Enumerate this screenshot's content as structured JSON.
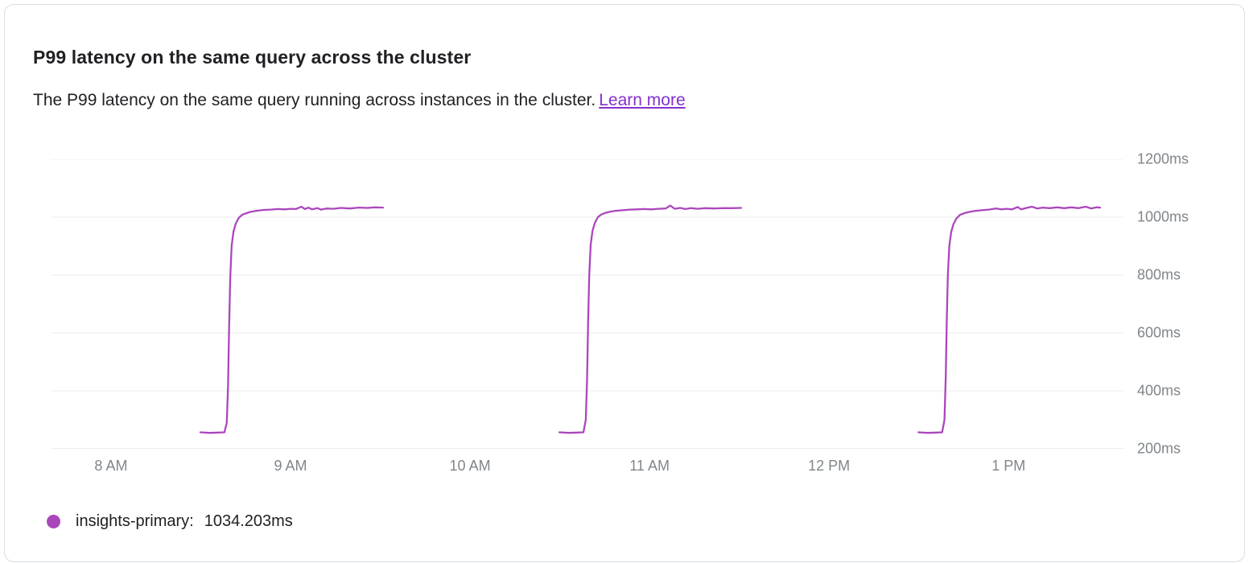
{
  "card": {
    "title": "P99 latency on the same query across the cluster",
    "subtitle": "The P99 latency on the same query running across instances in the cluster.",
    "learn_more_label": "Learn more",
    "link_color": "#8430ce"
  },
  "legend": {
    "series_label": "insights-primary:",
    "series_value": "1034.203ms",
    "dot_color": "#ab47bc"
  },
  "chart_data": {
    "type": "line",
    "series_name": "insights-primary",
    "current_value_ms": 1034.203,
    "line_color": "#ab47bc",
    "colors": {
      "grid": "#eceef0",
      "axis": "#dadce0",
      "tick_text": "#80868b"
    },
    "xlim": [
      7.664,
      13.64
    ],
    "ylim": [
      200,
      1200
    ],
    "x_ticks": [
      {
        "value": 8,
        "label": "8 AM"
      },
      {
        "value": 9,
        "label": "9 AM"
      },
      {
        "value": 10,
        "label": "10 AM"
      },
      {
        "value": 11,
        "label": "11 AM"
      },
      {
        "value": 12,
        "label": "12 PM"
      },
      {
        "value": 13,
        "label": "1 PM"
      }
    ],
    "y_ticks": [
      {
        "value": 1200,
        "label": "1200ms"
      },
      {
        "value": 1000,
        "label": "1000ms"
      },
      {
        "value": 800,
        "label": "800ms"
      },
      {
        "value": 600,
        "label": "600ms"
      },
      {
        "value": 400,
        "label": "400ms"
      },
      {
        "value": 200,
        "label": "200ms"
      }
    ],
    "segments": [
      {
        "points": [
          [
            8.498,
            257
          ],
          [
            8.55,
            255
          ],
          [
            8.6,
            256
          ],
          [
            8.632,
            257
          ],
          [
            8.645,
            290
          ],
          [
            8.652,
            420
          ],
          [
            8.658,
            620
          ],
          [
            8.664,
            790
          ],
          [
            8.672,
            900
          ],
          [
            8.682,
            950
          ],
          [
            8.695,
            978
          ],
          [
            8.712,
            998
          ],
          [
            8.73,
            1008
          ],
          [
            8.755,
            1014
          ],
          [
            8.78,
            1019
          ],
          [
            8.81,
            1022
          ],
          [
            8.85,
            1025
          ],
          [
            8.89,
            1026
          ],
          [
            8.93,
            1028
          ],
          [
            8.97,
            1027
          ],
          [
            9.0,
            1029
          ],
          [
            9.03,
            1028
          ],
          [
            9.06,
            1036
          ],
          [
            9.08,
            1028
          ],
          [
            9.1,
            1033
          ],
          [
            9.12,
            1027
          ],
          [
            9.15,
            1031
          ],
          [
            9.17,
            1026
          ],
          [
            9.2,
            1030
          ],
          [
            9.24,
            1029
          ],
          [
            9.28,
            1032
          ],
          [
            9.33,
            1030
          ],
          [
            9.38,
            1033
          ],
          [
            9.43,
            1032
          ],
          [
            9.47,
            1034
          ],
          [
            9.515,
            1033
          ]
        ]
      },
      {
        "points": [
          [
            10.498,
            257
          ],
          [
            10.55,
            255
          ],
          [
            10.6,
            256
          ],
          [
            10.632,
            257
          ],
          [
            10.645,
            300
          ],
          [
            10.652,
            440
          ],
          [
            10.658,
            640
          ],
          [
            10.664,
            800
          ],
          [
            10.672,
            905
          ],
          [
            10.682,
            952
          ],
          [
            10.695,
            980
          ],
          [
            10.712,
            1000
          ],
          [
            10.73,
            1009
          ],
          [
            10.755,
            1015
          ],
          [
            10.78,
            1019
          ],
          [
            10.81,
            1022
          ],
          [
            10.85,
            1024
          ],
          [
            10.89,
            1026
          ],
          [
            10.93,
            1027
          ],
          [
            10.97,
            1028
          ],
          [
            11.01,
            1027
          ],
          [
            11.05,
            1029
          ],
          [
            11.09,
            1030
          ],
          [
            11.115,
            1040
          ],
          [
            11.14,
            1029
          ],
          [
            11.17,
            1032
          ],
          [
            11.2,
            1028
          ],
          [
            11.23,
            1031
          ],
          [
            11.27,
            1029
          ],
          [
            11.31,
            1031
          ],
          [
            11.36,
            1030
          ],
          [
            11.41,
            1031
          ],
          [
            11.46,
            1031
          ],
          [
            11.51,
            1032
          ]
        ]
      },
      {
        "points": [
          [
            12.498,
            257
          ],
          [
            12.55,
            255
          ],
          [
            12.6,
            256
          ],
          [
            12.63,
            257
          ],
          [
            12.643,
            300
          ],
          [
            12.65,
            450
          ],
          [
            12.656,
            650
          ],
          [
            12.662,
            800
          ],
          [
            12.67,
            900
          ],
          [
            12.68,
            948
          ],
          [
            12.693,
            976
          ],
          [
            12.71,
            996
          ],
          [
            12.73,
            1008
          ],
          [
            12.755,
            1014
          ],
          [
            12.78,
            1018
          ],
          [
            12.81,
            1021
          ],
          [
            12.85,
            1024
          ],
          [
            12.89,
            1026
          ],
          [
            12.93,
            1030
          ],
          [
            12.96,
            1027
          ],
          [
            12.99,
            1029
          ],
          [
            13.02,
            1027
          ],
          [
            13.05,
            1035
          ],
          [
            13.07,
            1027
          ],
          [
            13.1,
            1032
          ],
          [
            13.13,
            1036
          ],
          [
            13.16,
            1030
          ],
          [
            13.19,
            1033
          ],
          [
            13.23,
            1031
          ],
          [
            13.27,
            1034
          ],
          [
            13.31,
            1031
          ],
          [
            13.35,
            1034
          ],
          [
            13.39,
            1031
          ],
          [
            13.43,
            1036
          ],
          [
            13.46,
            1030
          ],
          [
            13.49,
            1034
          ],
          [
            13.51,
            1033
          ]
        ]
      }
    ]
  }
}
